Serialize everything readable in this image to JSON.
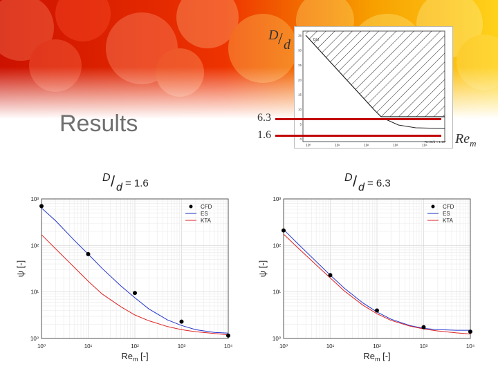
{
  "slide": {
    "title": "Results"
  },
  "overlay": {
    "ratio_label_top": "D",
    "ratio_label_bottom": "d",
    "level_high": "6.3",
    "level_low": "1.6",
    "x_label": "Re",
    "x_label_sub": "m"
  },
  "inset": {
    "y_ticks": [
      "0",
      "5",
      "10",
      "15",
      "20",
      "25",
      "30",
      "35"
    ],
    "y_unit": "D/d",
    "x_ticks": [
      "10⁰",
      "10¹",
      "10²",
      "10³",
      "10⁴"
    ],
    "x_note": "Re√D/d < 1.10⁴"
  },
  "chart_data": [
    {
      "type": "line",
      "title_prefix": "D/d",
      "title": "D/d = 1.6",
      "title_value": "= 1.6",
      "xlabel": "Re",
      "xlabel_sub": "m",
      "xlabel_unit": "[-]",
      "ylabel": "ψ [-]",
      "xscale": "log",
      "yscale": "log",
      "xlim": [
        1,
        10000
      ],
      "ylim": [
        1,
        1000
      ],
      "x_ticks": [
        "10⁰",
        "10¹",
        "10²",
        "10³",
        "10⁴"
      ],
      "y_ticks": [
        "10⁰",
        "10¹",
        "10²",
        "10³"
      ],
      "grid": true,
      "legend": "top-right",
      "series": [
        {
          "name": "CFD",
          "kind": "points",
          "color": "#000000",
          "x": [
            1,
            10,
            100,
            1000,
            10000
          ],
          "y": [
            700,
            65,
            9.5,
            2.3,
            1.15
          ]
        },
        {
          "name": "ES",
          "kind": "line",
          "color": "#2233cc",
          "x": [
            1,
            2,
            5,
            10,
            20,
            50,
            100,
            200,
            500,
            1000,
            2000,
            5000,
            10000
          ],
          "y": [
            640,
            340,
            130,
            65,
            32,
            13.5,
            7.5,
            4.3,
            2.5,
            1.9,
            1.55,
            1.35,
            1.3
          ]
        },
        {
          "name": "KTA",
          "kind": "line",
          "color": "#dd2222",
          "x": [
            1,
            2,
            5,
            10,
            20,
            50,
            100,
            200,
            500,
            1000,
            2000,
            5000,
            10000
          ],
          "y": [
            170,
            85,
            34,
            17,
            9,
            4.8,
            3.2,
            2.4,
            1.8,
            1.55,
            1.4,
            1.28,
            1.2
          ]
        }
      ]
    },
    {
      "type": "line",
      "title_prefix": "D/d",
      "title": "D/d = 6.3",
      "title_value": "= 6.3",
      "xlabel": "Re",
      "xlabel_sub": "m",
      "xlabel_unit": "[-]",
      "ylabel": "ψ [-]",
      "xscale": "log",
      "yscale": "log",
      "xlim": [
        1,
        10000
      ],
      "ylim": [
        1,
        1000
      ],
      "x_ticks": [
        "10⁰",
        "10¹",
        "10²",
        "10³",
        "10⁴"
      ],
      "y_ticks": [
        "10⁰",
        "10¹",
        "10²",
        "10³"
      ],
      "grid": true,
      "legend": "top-right",
      "series": [
        {
          "name": "CFD",
          "kind": "points",
          "color": "#000000",
          "x": [
            1,
            10,
            100,
            1000,
            10000
          ],
          "y": [
            210,
            23,
            4.0,
            1.75,
            1.4
          ]
        },
        {
          "name": "ES",
          "kind": "line",
          "color": "#2233cc",
          "x": [
            1,
            2,
            5,
            10,
            20,
            50,
            100,
            200,
            500,
            1000,
            2000,
            5000,
            10000
          ],
          "y": [
            220,
            110,
            45,
            23,
            12,
            5.8,
            3.7,
            2.6,
            1.9,
            1.65,
            1.55,
            1.5,
            1.5
          ]
        },
        {
          "name": "KTA",
          "kind": "line",
          "color": "#dd2222",
          "x": [
            1,
            2,
            5,
            10,
            20,
            50,
            100,
            200,
            500,
            1000,
            2000,
            5000,
            10000
          ],
          "y": [
            175,
            90,
            38,
            20,
            10.5,
            5.2,
            3.4,
            2.45,
            1.85,
            1.6,
            1.45,
            1.32,
            1.25
          ]
        }
      ]
    }
  ]
}
